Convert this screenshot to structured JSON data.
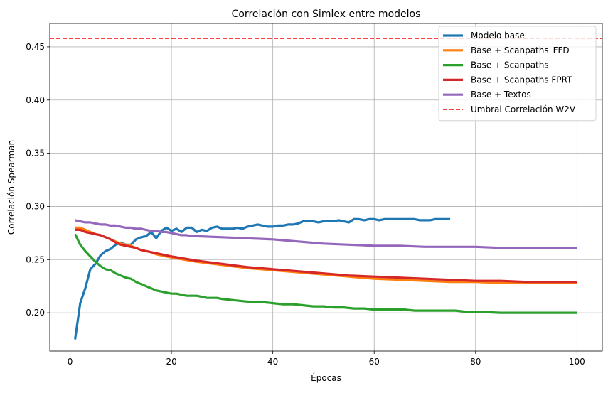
{
  "chart_data": {
    "type": "line",
    "title": "Correlación con Simlex entre modelos",
    "xlabel": "Épocas",
    "ylabel": "Correlación Spearman",
    "xlim": [
      -4,
      105
    ],
    "ylim": [
      0.164,
      0.472
    ],
    "xticks": [
      0,
      20,
      40,
      60,
      80,
      100
    ],
    "xtick_labels": [
      "0",
      "20",
      "40",
      "60",
      "80",
      "100"
    ],
    "yticks": [
      0.2,
      0.25,
      0.3,
      0.35,
      0.4,
      0.45
    ],
    "ytick_labels": [
      "0.20",
      "0.25",
      "0.30",
      "0.35",
      "0.40",
      "0.45"
    ],
    "grid": true,
    "legend_position": "top-right",
    "series": [
      {
        "name": "Modelo base",
        "color": "#1f77b4",
        "x": [
          1,
          2,
          3,
          4,
          5,
          6,
          7,
          8,
          9,
          10,
          11,
          12,
          13,
          14,
          15,
          16,
          17,
          18,
          19,
          20,
          21,
          22,
          23,
          24,
          25,
          26,
          27,
          28,
          29,
          30,
          31,
          32,
          33,
          34,
          35,
          36,
          37,
          38,
          39,
          40,
          41,
          42,
          43,
          44,
          45,
          46,
          47,
          48,
          49,
          50,
          51,
          52,
          53,
          54,
          55,
          56,
          57,
          58,
          59,
          60,
          61,
          62,
          63,
          64,
          65,
          66,
          67,
          68,
          69,
          70,
          71,
          72,
          73,
          74,
          75
        ],
        "values": [
          0.175,
          0.209,
          0.223,
          0.241,
          0.246,
          0.254,
          0.258,
          0.26,
          0.264,
          0.266,
          0.264,
          0.264,
          0.269,
          0.271,
          0.272,
          0.276,
          0.27,
          0.277,
          0.28,
          0.277,
          0.279,
          0.276,
          0.28,
          0.28,
          0.276,
          0.278,
          0.277,
          0.28,
          0.281,
          0.279,
          0.279,
          0.279,
          0.28,
          0.279,
          0.281,
          0.282,
          0.283,
          0.282,
          0.281,
          0.281,
          0.282,
          0.282,
          0.283,
          0.283,
          0.284,
          0.286,
          0.286,
          0.286,
          0.285,
          0.286,
          0.286,
          0.286,
          0.287,
          0.286,
          0.285,
          0.288,
          0.288,
          0.287,
          0.288,
          0.288,
          0.287,
          0.288,
          0.288,
          0.288,
          0.288,
          0.288,
          0.288,
          0.288,
          0.287,
          0.287,
          0.287,
          0.288,
          0.288,
          0.288,
          0.288
        ]
      },
      {
        "name": "Base + Scanpaths_FFD",
        "color": "#ff7f0e",
        "x": [
          1,
          2,
          3,
          4,
          5,
          6,
          7,
          8,
          9,
          10,
          11,
          12,
          13,
          14,
          15,
          16,
          17,
          18,
          19,
          20,
          25,
          30,
          35,
          40,
          45,
          50,
          55,
          60,
          65,
          70,
          75,
          80,
          85,
          90,
          95,
          100
        ],
        "values": [
          0.28,
          0.28,
          0.278,
          0.276,
          0.274,
          0.273,
          0.271,
          0.269,
          0.267,
          0.265,
          0.264,
          0.263,
          0.261,
          0.259,
          0.258,
          0.257,
          0.255,
          0.254,
          0.253,
          0.252,
          0.248,
          0.245,
          0.242,
          0.24,
          0.238,
          0.236,
          0.234,
          0.232,
          0.231,
          0.23,
          0.229,
          0.229,
          0.228,
          0.228,
          0.228,
          0.228
        ]
      },
      {
        "name": "Base + Scanpaths",
        "color": "#2ca02c",
        "x": [
          1,
          2,
          3,
          4,
          5,
          6,
          7,
          8,
          9,
          10,
          11,
          12,
          13,
          14,
          15,
          16,
          17,
          18,
          19,
          20,
          21,
          22,
          23,
          24,
          25,
          26,
          27,
          28,
          29,
          30,
          32,
          34,
          36,
          38,
          40,
          42,
          44,
          46,
          48,
          50,
          52,
          54,
          56,
          58,
          60,
          62,
          64,
          66,
          68,
          70,
          72,
          74,
          76,
          78,
          80,
          85,
          90,
          95,
          100
        ],
        "values": [
          0.274,
          0.264,
          0.258,
          0.253,
          0.248,
          0.244,
          0.241,
          0.24,
          0.237,
          0.235,
          0.233,
          0.232,
          0.229,
          0.227,
          0.225,
          0.223,
          0.221,
          0.22,
          0.219,
          0.218,
          0.218,
          0.217,
          0.216,
          0.216,
          0.216,
          0.215,
          0.214,
          0.214,
          0.214,
          0.213,
          0.212,
          0.211,
          0.21,
          0.21,
          0.209,
          0.208,
          0.208,
          0.207,
          0.206,
          0.206,
          0.205,
          0.205,
          0.204,
          0.204,
          0.203,
          0.203,
          0.203,
          0.203,
          0.202,
          0.202,
          0.202,
          0.202,
          0.202,
          0.201,
          0.201,
          0.2,
          0.2,
          0.2,
          0.2
        ]
      },
      {
        "name": "Base + Scanpaths FPRT",
        "color": "#d62728",
        "x": [
          1,
          2,
          3,
          4,
          5,
          6,
          7,
          8,
          9,
          10,
          11,
          12,
          13,
          14,
          15,
          16,
          17,
          18,
          19,
          20,
          25,
          30,
          35,
          40,
          45,
          50,
          55,
          60,
          65,
          70,
          75,
          80,
          85,
          90,
          95,
          100
        ],
        "values": [
          0.278,
          0.278,
          0.276,
          0.275,
          0.274,
          0.273,
          0.271,
          0.269,
          0.266,
          0.264,
          0.263,
          0.262,
          0.261,
          0.259,
          0.258,
          0.257,
          0.256,
          0.255,
          0.254,
          0.253,
          0.249,
          0.246,
          0.243,
          0.241,
          0.239,
          0.237,
          0.235,
          0.234,
          0.233,
          0.232,
          0.231,
          0.23,
          0.23,
          0.229,
          0.229,
          0.229
        ]
      },
      {
        "name": "Base + Textos",
        "color": "#9467bd",
        "x": [
          1,
          2,
          3,
          4,
          5,
          6,
          7,
          8,
          9,
          10,
          11,
          12,
          13,
          14,
          15,
          16,
          17,
          18,
          19,
          20,
          21,
          22,
          23,
          24,
          25,
          30,
          35,
          40,
          45,
          50,
          55,
          60,
          65,
          70,
          75,
          80,
          85,
          90,
          95,
          100
        ],
        "values": [
          0.287,
          0.286,
          0.285,
          0.285,
          0.284,
          0.283,
          0.283,
          0.282,
          0.282,
          0.281,
          0.28,
          0.28,
          0.279,
          0.279,
          0.278,
          0.277,
          0.277,
          0.276,
          0.276,
          0.275,
          0.274,
          0.273,
          0.273,
          0.272,
          0.272,
          0.271,
          0.27,
          0.269,
          0.267,
          0.265,
          0.264,
          0.263,
          0.263,
          0.262,
          0.262,
          0.262,
          0.261,
          0.261,
          0.261,
          0.261
        ]
      }
    ],
    "threshold": {
      "name": "Umbral Correlación W2V",
      "value": 0.458,
      "color": "#ff0000",
      "style": "dashed"
    }
  }
}
